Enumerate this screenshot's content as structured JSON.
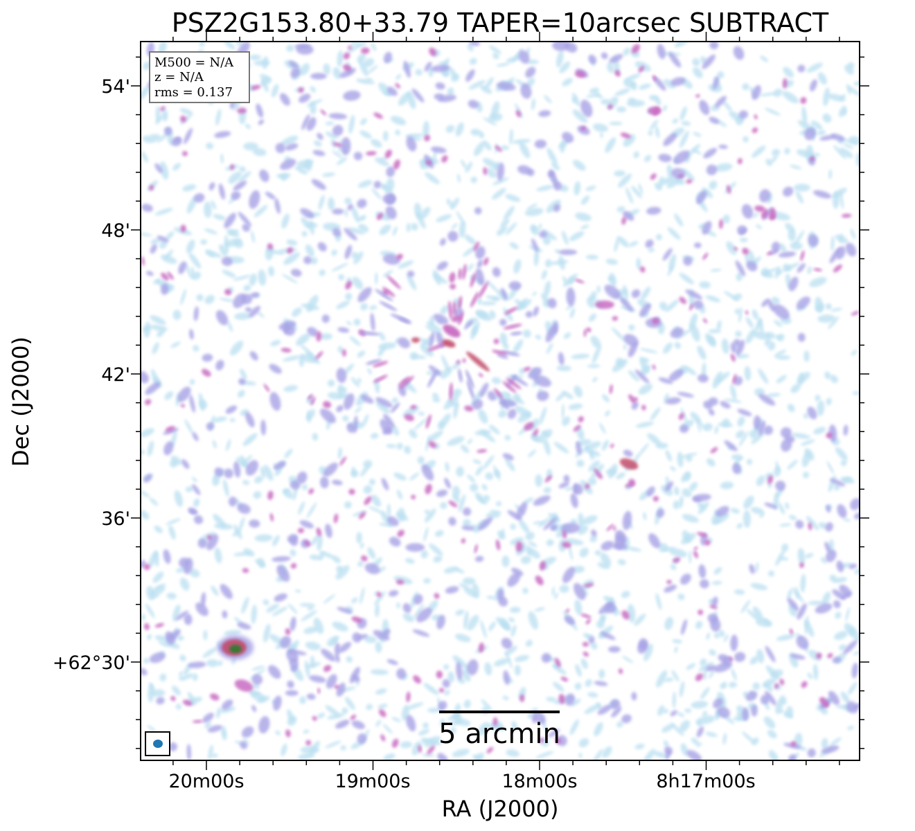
{
  "chart_data": {
    "type": "heatmap",
    "title": "PSZ2G153.80+33.79 TAPER=10arcsec SUBTRACT",
    "xlabel": "RA (J2000)",
    "ylabel": "Dec (J2000)",
    "x_ticks": [
      "20m00s",
      "19m00s",
      "18m00s",
      "8h17m00s"
    ],
    "y_ticks": [
      "54'",
      "48'",
      "42'",
      "36'",
      "+62°30'"
    ],
    "info_box": {
      "m500": "M500 = N/A",
      "z": "z = N/A",
      "rms": "rms = 0.137"
    },
    "scale_bar": "5 arcmin",
    "colors": {
      "low": "#b9dff0",
      "mid": "#a7a2e6",
      "high": "#c86bc2",
      "peak": "#c24a6a",
      "core": "#2f7a2f",
      "beam": "#1f77b4"
    }
  }
}
